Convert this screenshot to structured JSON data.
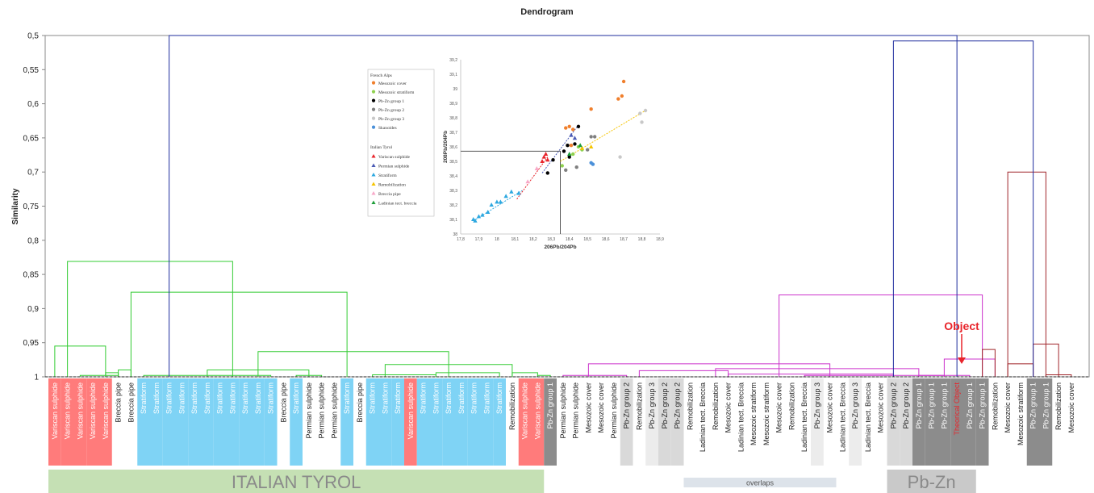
{
  "chart_data": {
    "type": "dendrogram",
    "title": "Dendrogram",
    "ylabel": "Similarity",
    "ylim": [
      0.5,
      1
    ],
    "y_ticks": [
      "0,5",
      "0,55",
      "0,6",
      "0,65",
      "0,7",
      "0,75",
      "0,8",
      "0,85",
      "0,9",
      "0,95",
      "1"
    ],
    "leaves": [
      {
        "label": "Variscan sulphide",
        "color": "#ff7b7b"
      },
      {
        "label": "Variscan sulphide",
        "color": "#ff7b7b"
      },
      {
        "label": "Variscan sulphide",
        "color": "#ff7b7b"
      },
      {
        "label": "Variscan sulphide",
        "color": "#ff7b7b"
      },
      {
        "label": "Variscan sulphide",
        "color": "#ff7b7b"
      },
      {
        "label": "Breccia pipe",
        "color": ""
      },
      {
        "label": "Breccia pipe",
        "color": ""
      },
      {
        "label": "Stratiform",
        "color": "#7fd3f5"
      },
      {
        "label": "Stratiform",
        "color": "#7fd3f5"
      },
      {
        "label": "Stratiform",
        "color": "#7fd3f5"
      },
      {
        "label": "Stratiform",
        "color": "#7fd3f5"
      },
      {
        "label": "Stratiform",
        "color": "#7fd3f5"
      },
      {
        "label": "Stratiform",
        "color": "#7fd3f5"
      },
      {
        "label": "Stratiform",
        "color": "#7fd3f5"
      },
      {
        "label": "Stratiform",
        "color": "#7fd3f5"
      },
      {
        "label": "Stratiform",
        "color": "#7fd3f5"
      },
      {
        "label": "Stratiform",
        "color": "#7fd3f5"
      },
      {
        "label": "Stratiform",
        "color": "#7fd3f5"
      },
      {
        "label": "Breccia pipe",
        "color": ""
      },
      {
        "label": "Stratiform",
        "color": "#7fd3f5"
      },
      {
        "label": "Permian sulphide",
        "color": ""
      },
      {
        "label": "Permian sulphide",
        "color": ""
      },
      {
        "label": "Permian sulphide",
        "color": ""
      },
      {
        "label": "Stratiform",
        "color": "#7fd3f5"
      },
      {
        "label": "Breccia pipe",
        "color": ""
      },
      {
        "label": "Stratiform",
        "color": "#7fd3f5"
      },
      {
        "label": "Stratiform",
        "color": "#7fd3f5"
      },
      {
        "label": "Stratiform",
        "color": "#7fd3f5"
      },
      {
        "label": "Variscan sulphide",
        "color": "#ff7b7b"
      },
      {
        "label": "Stratiform",
        "color": "#7fd3f5"
      },
      {
        "label": "Stratiform",
        "color": "#7fd3f5"
      },
      {
        "label": "Stratiform",
        "color": "#7fd3f5"
      },
      {
        "label": "Stratiform",
        "color": "#7fd3f5"
      },
      {
        "label": "Stratiform",
        "color": "#7fd3f5"
      },
      {
        "label": "Stratiform",
        "color": "#7fd3f5"
      },
      {
        "label": "Stratiform",
        "color": "#7fd3f5"
      },
      {
        "label": "Remobilization",
        "color": ""
      },
      {
        "label": "Variscan sulphide",
        "color": "#ff7b7b"
      },
      {
        "label": "Variscan sulphide",
        "color": "#ff7b7b"
      },
      {
        "label": "Pb-Zn group 1",
        "color": "#8c8c8c"
      },
      {
        "label": "Permian sulphide",
        "color": ""
      },
      {
        "label": "Permian sulphide",
        "color": ""
      },
      {
        "label": "Mesozoic cover",
        "color": ""
      },
      {
        "label": "Mesozoic cover",
        "color": ""
      },
      {
        "label": "Permian sulphide",
        "color": ""
      },
      {
        "label": "Pb-Zn group 2",
        "color": "#d9d9d9"
      },
      {
        "label": "Remobilization",
        "color": ""
      },
      {
        "label": "Pb-Zn group 3",
        "color": "#ececec"
      },
      {
        "label": "Pb-Zn group 2",
        "color": "#d9d9d9"
      },
      {
        "label": "Pb-Zn group 2",
        "color": "#d9d9d9"
      },
      {
        "label": "Remobilization",
        "color": ""
      },
      {
        "label": "Ladinian tect. Breccia",
        "color": ""
      },
      {
        "label": "Remobilization",
        "color": ""
      },
      {
        "label": "Mesozoic cover",
        "color": ""
      },
      {
        "label": "Ladinian tect. Breccia",
        "color": ""
      },
      {
        "label": "Mesozoic stratiform",
        "color": ""
      },
      {
        "label": "Mesozoic stratiform",
        "color": ""
      },
      {
        "label": "Mesozoic cover",
        "color": ""
      },
      {
        "label": "Remobilization",
        "color": ""
      },
      {
        "label": "Ladinian tect. Breccia",
        "color": ""
      },
      {
        "label": "Pb-Zn group 3",
        "color": "#ececec"
      },
      {
        "label": "Mesozoic cover",
        "color": ""
      },
      {
        "label": "Ladinian tect. Breccia",
        "color": ""
      },
      {
        "label": "Pb-Zn group 3",
        "color": "#ececec"
      },
      {
        "label": "Ladinian tect. Breccia",
        "color": ""
      },
      {
        "label": "Mesozoic cover",
        "color": ""
      },
      {
        "label": "Pb-Zn group 2",
        "color": "#d9d9d9"
      },
      {
        "label": "Pb-Zn group 2",
        "color": "#d9d9d9"
      },
      {
        "label": "Pb-Zn group 1",
        "color": "#8c8c8c"
      },
      {
        "label": "Pb-Zn group 1",
        "color": "#8c8c8c"
      },
      {
        "label": "Pb-Zn group 1",
        "color": "#8c8c8c"
      },
      {
        "label": "Theorical Object",
        "color": "#8c8c8c",
        "highlight": true
      },
      {
        "label": "Pb-Zn group 1",
        "color": "#8c8c8c"
      },
      {
        "label": "Pb-Zn group 1",
        "color": "#8c8c8c"
      },
      {
        "label": "Remobilization",
        "color": ""
      },
      {
        "label": "Mesozoic cover",
        "color": ""
      },
      {
        "label": "Mesozoic stratiform",
        "color": ""
      },
      {
        "label": "Pb-Zn group 1",
        "color": "#8c8c8c"
      },
      {
        "label": "Pb-Zn group 1",
        "color": "#8c8c8c"
      },
      {
        "label": "Remobilization",
        "color": ""
      },
      {
        "label": "Mesozoic cover",
        "color": ""
      }
    ],
    "merges": [
      {
        "i": 0,
        "j": 4,
        "h": 0.955,
        "c": "#33cc33"
      },
      {
        "i": 4,
        "j": 5,
        "h": 0.994,
        "c": "#33cc33"
      },
      {
        "i": 2,
        "j": 5,
        "h": 0.998,
        "c": "#33cc33"
      },
      {
        "i": 5,
        "j": 6,
        "h": 0.99,
        "c": "#33cc33"
      },
      {
        "i": 7,
        "j": 17,
        "h": 0.998,
        "c": "#33cc33"
      },
      {
        "i": 12,
        "j": 20,
        "h": 0.99,
        "c": "#33cc33"
      },
      {
        "i": 19,
        "j": 21,
        "h": 0.998,
        "c": "#33cc33"
      },
      {
        "i": 25,
        "j": 30,
        "h": 0.997,
        "c": "#33cc33"
      },
      {
        "i": 30,
        "j": 35,
        "h": 0.994,
        "c": "#33cc33"
      },
      {
        "i": 26,
        "j": 36,
        "h": 0.982,
        "c": "#33cc33"
      },
      {
        "i": 36,
        "j": 38,
        "h": 0.994,
        "c": "#33cc33"
      },
      {
        "i": 38,
        "j": 39,
        "h": 0.998,
        "c": "#33cc33"
      },
      {
        "i": 16,
        "j": 31,
        "h": 0.963,
        "c": "#33cc33"
      },
      {
        "i": 6,
        "j": 23,
        "h": 0.876,
        "c": "#33cc33"
      },
      {
        "i": 1,
        "j": 14,
        "h": 0.831,
        "c": "#33cc33"
      },
      {
        "i": 40,
        "j": 45,
        "h": 0.998,
        "c": "#cc33cc"
      },
      {
        "i": 46,
        "j": 53,
        "h": 0.991,
        "c": "#cc33cc"
      },
      {
        "i": 53,
        "j": 66,
        "h": 0.996,
        "c": "#cc33cc"
      },
      {
        "i": 59,
        "j": 70,
        "h": 0.998,
        "c": "#cc33cc"
      },
      {
        "i": 42,
        "j": 61,
        "h": 0.981,
        "c": "#cc33cc"
      },
      {
        "i": 52,
        "j": 68,
        "h": 0.988,
        "c": "#cc33cc"
      },
      {
        "i": 68,
        "j": 72,
        "h": 0.998,
        "c": "#cc33cc"
      },
      {
        "i": 70,
        "j": 74,
        "h": 0.974,
        "c": "#cc33cc"
      },
      {
        "i": 57,
        "j": 73,
        "h": 0.88,
        "c": "#cc33cc"
      },
      {
        "i": 73,
        "j": 74,
        "h": 0.96,
        "c": "#a0262b"
      },
      {
        "i": 75,
        "j": 77,
        "h": 0.981,
        "c": "#a0262b"
      },
      {
        "i": 78,
        "j": 80,
        "h": 0.997,
        "c": "#a0262b"
      },
      {
        "i": 77,
        "j": 79,
        "h": 0.952,
        "c": "#a0262b"
      },
      {
        "i": 75,
        "j": 78,
        "h": 0.7,
        "c": "#a0262b"
      },
      {
        "i": 66,
        "j": 77,
        "h": 0.508,
        "c": "#1f2d9e"
      },
      {
        "i": 9,
        "j": 71,
        "h": 0.5,
        "c": "#1f2d9e"
      }
    ],
    "annotation": "Object",
    "groups": [
      {
        "label": "ITALIAN TYROL",
        "color": "#c5e0b4"
      },
      {
        "label": "overlaps",
        "color": "#dde3ea"
      },
      {
        "label": "Pb-Zn",
        "color": "#c9c9c9"
      }
    ],
    "inset": {
      "type": "scatter",
      "xlabel": "206Pb/204Pb",
      "ylabel": "208Pb/204Pb",
      "xlim": [
        17.8,
        18.9
      ],
      "ylim": [
        38.0,
        39.2
      ],
      "x_ticks": [
        "17,8",
        "17,9",
        "18",
        "18,1",
        "18,2",
        "18,3",
        "18,4",
        "18,5",
        "18,6",
        "18,7",
        "18,8",
        "18,9"
      ],
      "y_ticks": [
        "38",
        "38,1",
        "38,2",
        "38,3",
        "38,4",
        "38,5",
        "38,6",
        "38,7",
        "38,8",
        "38,9",
        "39",
        "39,1",
        "39,2"
      ],
      "legend_headers": [
        "French Alps",
        "Italian  Tyrol"
      ],
      "legend": [
        {
          "name": "Mesozoic cover",
          "color": "#f07f2c",
          "marker": "circle"
        },
        {
          "name": "Mesozoic stratiform",
          "color": "#8fd14f",
          "marker": "circle"
        },
        {
          "name": "Pb-Zn group 1",
          "color": "#000000",
          "marker": "circle"
        },
        {
          "name": "Pb-Zn group 2",
          "color": "#7f7f7f",
          "marker": "circle"
        },
        {
          "name": "Pb-Zn group 3",
          "color": "#c8c8c8",
          "marker": "circle"
        },
        {
          "name": "Skanoides",
          "color": "#4a90d9",
          "marker": "circle"
        },
        {
          "name": "Variscan sulphide",
          "color": "#e8242b",
          "marker": "triangle"
        },
        {
          "name": "Permian sulphide",
          "color": "#4b5bb5",
          "marker": "triangle"
        },
        {
          "name": "Stratiform",
          "color": "#2ea8e0",
          "marker": "triangle"
        },
        {
          "name": "Remobilization",
          "color": "#f5c400",
          "marker": "triangle"
        },
        {
          "name": "Breccia pipe",
          "color": "#f7a8c8",
          "marker": "triangle"
        },
        {
          "name": "Ladinian tect. breccia",
          "color": "#1e9e3a",
          "marker": "triangle"
        }
      ],
      "reference_point": [
        18.35,
        38.57
      ],
      "points": [
        {
          "s": 0,
          "x": 18.38,
          "y": 38.73
        },
        {
          "s": 0,
          "x": 18.4,
          "y": 38.74
        },
        {
          "s": 0,
          "x": 18.42,
          "y": 38.72
        },
        {
          "s": 0,
          "x": 18.52,
          "y": 38.86
        },
        {
          "s": 0,
          "x": 18.67,
          "y": 38.93
        },
        {
          "s": 0,
          "x": 18.69,
          "y": 38.95
        },
        {
          "s": 0,
          "x": 18.7,
          "y": 39.05
        },
        {
          "s": 0,
          "x": 18.41,
          "y": 38.61
        },
        {
          "s": 1,
          "x": 18.36,
          "y": 38.47
        },
        {
          "s": 1,
          "x": 18.42,
          "y": 38.55
        },
        {
          "s": 1,
          "x": 18.47,
          "y": 38.58
        },
        {
          "s": 1,
          "x": 18.45,
          "y": 38.6
        },
        {
          "s": 2,
          "x": 18.31,
          "y": 38.51
        },
        {
          "s": 2,
          "x": 18.37,
          "y": 38.57
        },
        {
          "s": 2,
          "x": 18.39,
          "y": 38.61
        },
        {
          "s": 2,
          "x": 18.43,
          "y": 38.62
        },
        {
          "s": 2,
          "x": 18.45,
          "y": 38.74
        },
        {
          "s": 2,
          "x": 18.28,
          "y": 38.42
        },
        {
          "s": 2,
          "x": 18.4,
          "y": 38.53
        },
        {
          "s": 3,
          "x": 18.44,
          "y": 38.46
        },
        {
          "s": 3,
          "x": 18.5,
          "y": 38.58
        },
        {
          "s": 3,
          "x": 18.52,
          "y": 38.67
        },
        {
          "s": 3,
          "x": 18.54,
          "y": 38.67
        },
        {
          "s": 3,
          "x": 18.38,
          "y": 38.44
        },
        {
          "s": 4,
          "x": 18.68,
          "y": 38.53
        },
        {
          "s": 4,
          "x": 18.8,
          "y": 38.77
        },
        {
          "s": 4,
          "x": 18.82,
          "y": 38.85
        },
        {
          "s": 4,
          "x": 18.79,
          "y": 38.83
        },
        {
          "s": 5,
          "x": 18.52,
          "y": 38.49
        },
        {
          "s": 5,
          "x": 18.53,
          "y": 38.48
        },
        {
          "s": 6,
          "x": 18.26,
          "y": 38.53
        },
        {
          "s": 6,
          "x": 18.27,
          "y": 38.55
        },
        {
          "s": 6,
          "x": 18.28,
          "y": 38.51
        },
        {
          "s": 6,
          "x": 18.25,
          "y": 38.5
        },
        {
          "s": 7,
          "x": 18.41,
          "y": 38.68
        },
        {
          "s": 7,
          "x": 18.43,
          "y": 38.66
        },
        {
          "s": 8,
          "x": 17.88,
          "y": 38.09
        },
        {
          "s": 8,
          "x": 17.9,
          "y": 38.12
        },
        {
          "s": 8,
          "x": 17.92,
          "y": 38.13
        },
        {
          "s": 8,
          "x": 17.95,
          "y": 38.15
        },
        {
          "s": 8,
          "x": 17.97,
          "y": 38.2
        },
        {
          "s": 8,
          "x": 18.0,
          "y": 38.22
        },
        {
          "s": 8,
          "x": 18.02,
          "y": 38.22
        },
        {
          "s": 8,
          "x": 18.05,
          "y": 38.26
        },
        {
          "s": 8,
          "x": 18.08,
          "y": 38.29
        },
        {
          "s": 8,
          "x": 18.12,
          "y": 38.28
        },
        {
          "s": 8,
          "x": 17.87,
          "y": 38.1
        },
        {
          "s": 9,
          "x": 18.52,
          "y": 38.6
        },
        {
          "s": 9,
          "x": 18.47,
          "y": 38.59
        },
        {
          "s": 10,
          "x": 18.22,
          "y": 38.45
        },
        {
          "s": 10,
          "x": 18.17,
          "y": 38.36
        },
        {
          "s": 11,
          "x": 18.46,
          "y": 38.61
        },
        {
          "s": 11,
          "x": 18.4,
          "y": 38.55
        }
      ],
      "trend_lines": [
        {
          "color": "#e8242b",
          "from": [
            18.11,
            38.24
          ],
          "to": [
            18.28,
            38.53
          ]
        },
        {
          "color": "#4b5bb5",
          "from": [
            18.25,
            38.42
          ],
          "to": [
            18.45,
            38.75
          ]
        },
        {
          "color": "#2ea8e0",
          "from": [
            17.87,
            38.09
          ],
          "to": [
            18.14,
            38.3
          ]
        },
        {
          "color": "#f5c400",
          "from": [
            18.35,
            38.5
          ],
          "to": [
            18.82,
            38.85
          ]
        }
      ]
    }
  }
}
